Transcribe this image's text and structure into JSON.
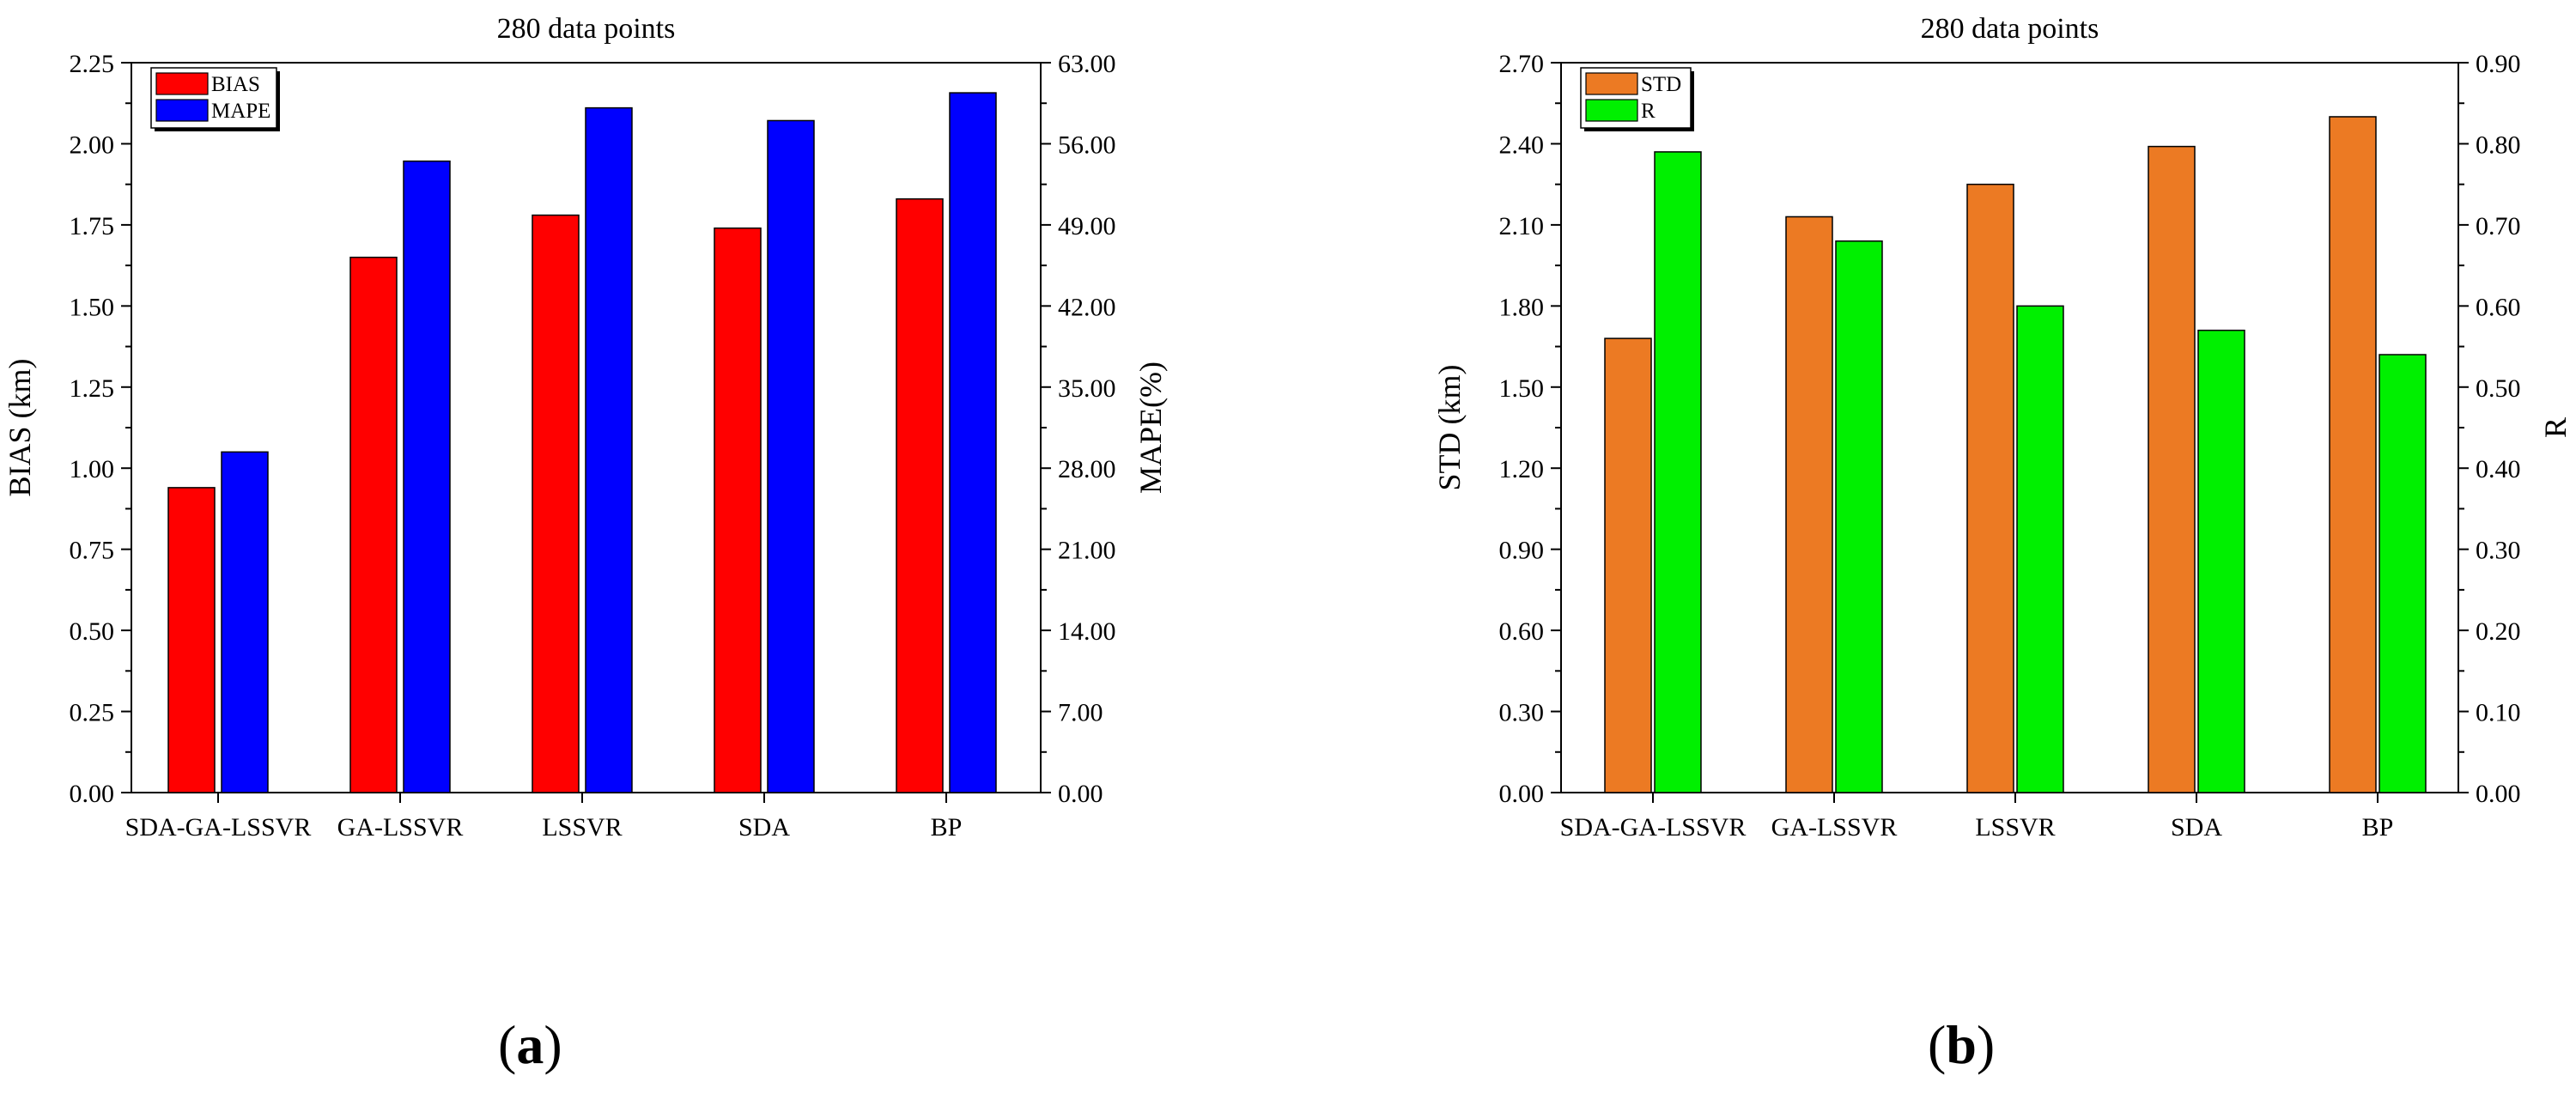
{
  "chart_data": [
    {
      "type": "bar",
      "panel": "a",
      "title": "280 data points",
      "categories": [
        "SDA-GA-LSSVR",
        "GA-LSSVR",
        "LSSVR",
        "SDA",
        "BP"
      ],
      "xlabel": "",
      "ylabel": "BIAS (km)",
      "y2label": "MAPE(%)",
      "ylim": [
        0,
        2.25
      ],
      "y2lim": [
        0,
        63
      ],
      "yticks": [
        "0.00",
        "0.25",
        "0.50",
        "0.75",
        "1.00",
        "1.25",
        "1.50",
        "1.75",
        "2.00",
        "2.25"
      ],
      "y2ticks": [
        "0.00",
        "7.00",
        "14.00",
        "21.00",
        "28.00",
        "35.00",
        "42.00",
        "49.00",
        "56.00",
        "63.00"
      ],
      "legend_position": "top-left",
      "series": [
        {
          "name": "BIAS",
          "axis": "left",
          "color": "#ff0000",
          "values": [
            0.94,
            1.65,
            1.78,
            1.74,
            1.83
          ]
        },
        {
          "name": "MAPE",
          "axis": "right",
          "color": "#0000ff",
          "values": [
            29.4,
            54.5,
            59.1,
            58.0,
            60.4
          ]
        }
      ]
    },
    {
      "type": "bar",
      "panel": "b",
      "title": "280 data points",
      "categories": [
        "SDA-GA-LSSVR",
        "GA-LSSVR",
        "LSSVR",
        "SDA",
        "BP"
      ],
      "xlabel": "",
      "ylabel": "STD (km)",
      "y2label": "R",
      "ylim": [
        0,
        2.7
      ],
      "y2lim": [
        0,
        0.9
      ],
      "yticks": [
        "0.00",
        "0.30",
        "0.60",
        "0.90",
        "1.20",
        "1.50",
        "1.80",
        "2.10",
        "2.40",
        "2.70"
      ],
      "y2ticks": [
        "0.00",
        "0.10",
        "0.20",
        "0.30",
        "0.40",
        "0.50",
        "0.60",
        "0.70",
        "0.80",
        "0.90"
      ],
      "legend_position": "top-left",
      "series": [
        {
          "name": "STD",
          "axis": "left",
          "color": "#ec7a23",
          "values": [
            1.68,
            2.13,
            2.25,
            2.39,
            2.5
          ]
        },
        {
          "name": "R",
          "axis": "right",
          "color": "#00f000",
          "values": [
            0.79,
            0.68,
            0.6,
            0.57,
            0.54
          ]
        }
      ]
    }
  ],
  "panel_labels": {
    "a": "a",
    "b": "b"
  }
}
